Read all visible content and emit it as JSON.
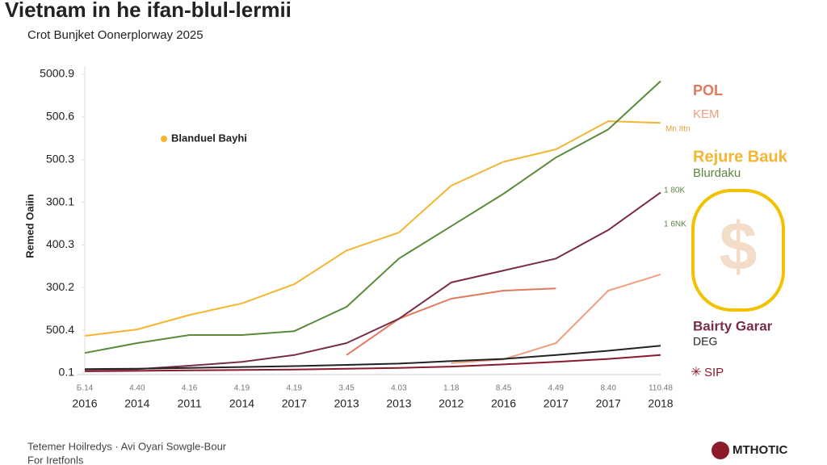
{
  "chart_data": {
    "type": "line",
    "title": "Vietnam in he ifan-blul-lermii",
    "subtitle": "Crot Bunjket Oonerplorway 2025",
    "y_label": "Remed Oaiin",
    "categories": [
      "2016",
      "2014",
      "2011",
      "2014",
      "2017",
      "2013",
      "2013",
      "2012",
      "2016",
      "2017",
      "2017",
      "2018"
    ],
    "category_sublabels": [
      "Б.14",
      "4.40",
      "4.16",
      "4.19",
      "4.19",
      "3.45",
      "4.03",
      "1.18",
      "8.45",
      "4.49",
      "8.40",
      "110.48"
    ],
    "ylim": [
      0,
      7
    ],
    "yticks": [
      {
        "value": 0,
        "label": "0.1"
      },
      {
        "value": 1,
        "label": "500.4"
      },
      {
        "value": 2,
        "label": "300.2"
      },
      {
        "value": 3,
        "label": "400.3"
      },
      {
        "value": 4,
        "label": "300.1"
      },
      {
        "value": 5,
        "label": "500.3"
      },
      {
        "value": 6,
        "label": "500.6"
      },
      {
        "value": 7,
        "label": "5000.9"
      }
    ],
    "series": [
      {
        "name": "POL",
        "color": "#e07a5f",
        "values": [
          null,
          null,
          null,
          null,
          null,
          0.42,
          1.27,
          1.74,
          1.93,
          1.98,
          null,
          null
        ]
      },
      {
        "name": "KEM",
        "color": "#f0a080",
        "values": [
          null,
          null,
          null,
          null,
          null,
          null,
          null,
          0.23,
          0.32,
          0.7,
          1.93,
          2.31
        ]
      },
      {
        "name": "Rejure Bauk",
        "color": "#f2b632",
        "values": [
          0.87,
          1.02,
          1.36,
          1.63,
          2.08,
          2.87,
          3.29,
          4.39,
          4.95,
          5.24,
          5.9,
          5.86
        ]
      },
      {
        "name": "Blurdaku",
        "color": "#5a8a3a",
        "values": [
          0.47,
          0.7,
          0.89,
          0.89,
          0.98,
          1.55,
          2.68,
          3.44,
          4.2,
          5.05,
          5.71,
          6.84
        ]
      },
      {
        "name": "Bairty Garar",
        "color": "#7a2c45",
        "values": [
          0.08,
          0.09,
          0.17,
          0.26,
          0.42,
          0.7,
          1.27,
          2.12,
          2.4,
          2.68,
          3.35,
          4.23
        ]
      },
      {
        "name": "DEG",
        "color": "#222222",
        "values": [
          0.09,
          0.1,
          0.12,
          0.14,
          0.16,
          0.19,
          0.22,
          0.28,
          0.33,
          0.42,
          0.52,
          0.64
        ]
      },
      {
        "name": "SIP",
        "color": "#8b1a2a",
        "values": [
          0.04,
          0.05,
          0.06,
          0.07,
          0.08,
          0.1,
          0.12,
          0.15,
          0.2,
          0.26,
          0.33,
          0.42
        ]
      }
    ],
    "annotations": [
      "Blanduel Bayhi",
      "Mn Ittn",
      "1 80K",
      "1 6NK"
    ],
    "footer": [
      "Tetemer Hoilredys · Avi Oyari Sowgle-Bour",
      "For Iretfonls"
    ],
    "logo": "MTHOTIC",
    "grid": false
  }
}
